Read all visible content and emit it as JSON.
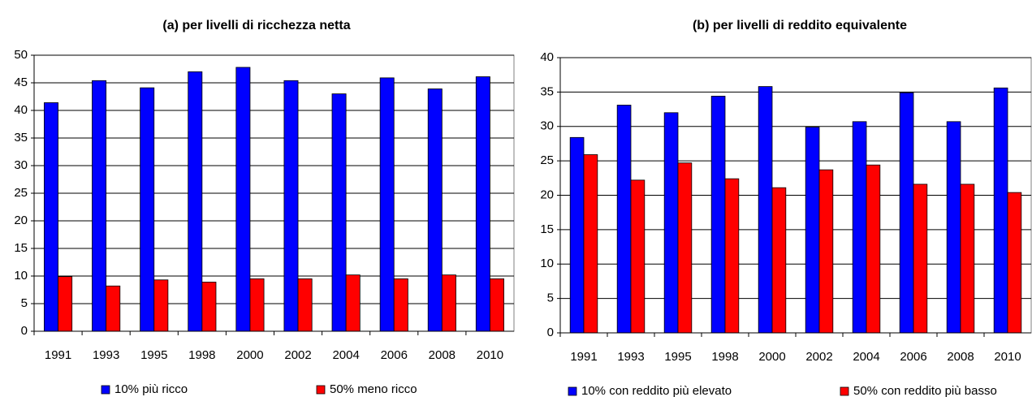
{
  "chart_data": [
    {
      "type": "bar",
      "title": "(a) per livelli di ricchezza netta",
      "categories": [
        "1991",
        "1993",
        "1995",
        "1998",
        "2000",
        "2002",
        "2004",
        "2006",
        "2008",
        "2010"
      ],
      "series": [
        {
          "name": "10% più ricco",
          "color": "#0000ff",
          "values": [
            41.4,
            45.4,
            44.1,
            47,
            47.8,
            45.4,
            43,
            45.9,
            43.9,
            46.1
          ]
        },
        {
          "name": "50% meno ricco",
          "color": "#ff0000",
          "values": [
            9.9,
            8.2,
            9.3,
            8.9,
            9.5,
            9.5,
            10.2,
            9.5,
            10.2,
            9.5
          ]
        }
      ],
      "ylim": [
        0,
        50
      ],
      "yticks": [
        0,
        5,
        10,
        15,
        20,
        25,
        30,
        35,
        40,
        45,
        50
      ],
      "grid": true,
      "legend": "bottom"
    },
    {
      "type": "bar",
      "title": "(b) per livelli di reddito equivalente",
      "categories": [
        "1991",
        "1993",
        "1995",
        "1998",
        "2000",
        "2002",
        "2004",
        "2006",
        "2008",
        "2010"
      ],
      "series": [
        {
          "name": "10% con reddito più elevato",
          "color": "#0000ff",
          "values": [
            28.4,
            33.1,
            32,
            34.4,
            35.8,
            29.9,
            30.7,
            34.9,
            30.7,
            35.6
          ]
        },
        {
          "name": "50% con reddito più basso",
          "color": "#ff0000",
          "values": [
            25.9,
            22.2,
            24.7,
            22.4,
            21.1,
            23.7,
            24.4,
            21.6,
            21.6,
            20.4
          ]
        }
      ],
      "ylim": [
        0,
        40
      ],
      "yticks": [
        0,
        5,
        10,
        15,
        20,
        25,
        30,
        35,
        40
      ],
      "grid": true,
      "legend": "bottom"
    }
  ]
}
